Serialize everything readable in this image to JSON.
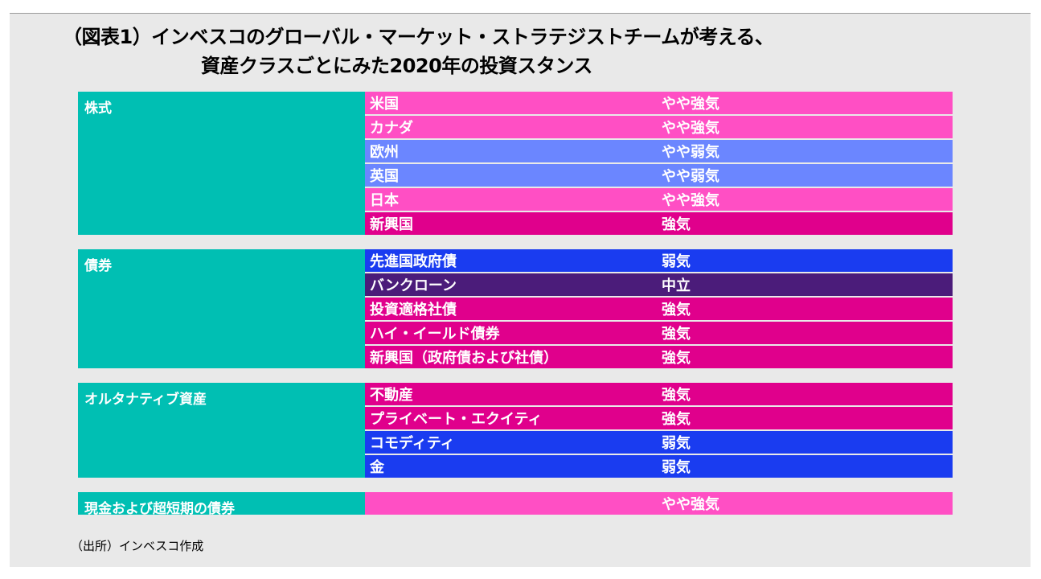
{
  "title": {
    "line1": "（図表1）インベスコのグローバル・マーケット・ストラテジストチームが考える、",
    "line2": "資産クラスごとにみた2020年の投資スタンス"
  },
  "colors": {
    "category": "#00bfb3",
    "slightly_bullish": "#ff4fc4",
    "slightly_bearish": "#6b86ff",
    "bullish": "#e0008c",
    "bearish": "#1a3cf0",
    "neutral": "#4b1c7a"
  },
  "groups": [
    {
      "category": "株式",
      "rows": [
        {
          "name": "米国",
          "stance": "やや強気",
          "color": "#ff4fc4"
        },
        {
          "name": "カナダ",
          "stance": "やや強気",
          "color": "#ff4fc4"
        },
        {
          "name": "欧州",
          "stance": "やや弱気",
          "color": "#6b86ff"
        },
        {
          "name": "英国",
          "stance": "やや弱気",
          "color": "#6b86ff"
        },
        {
          "name": "日本",
          "stance": "やや強気",
          "color": "#ff4fc4"
        },
        {
          "name": "新興国",
          "stance": "強気",
          "color": "#e0008c"
        }
      ]
    },
    {
      "category": "債券",
      "rows": [
        {
          "name": "先進国政府債",
          "stance": "弱気",
          "color": "#1a3cf0"
        },
        {
          "name": "バンクローン",
          "stance": "中立",
          "color": "#4b1c7a"
        },
        {
          "name": "投資適格社債",
          "stance": "強気",
          "color": "#e0008c"
        },
        {
          "name": "ハイ・イールド債券",
          "stance": "強気",
          "color": "#e0008c"
        },
        {
          "name": "新興国（政府債および社債）",
          "stance": "強気",
          "color": "#e0008c"
        }
      ]
    },
    {
      "category": "オルタナティブ資産",
      "rows": [
        {
          "name": "不動産",
          "stance": "強気",
          "color": "#e0008c"
        },
        {
          "name": "プライベート・エクイティ",
          "stance": "強気",
          "color": "#e0008c"
        },
        {
          "name": "コモディティ",
          "stance": "弱気",
          "color": "#1a3cf0"
        },
        {
          "name": "金",
          "stance": "弱気",
          "color": "#1a3cf0"
        }
      ]
    },
    {
      "category": "現金および超短期の債券",
      "rows": [
        {
          "name": "",
          "stance": "やや強気",
          "color": "#ff4fc4"
        }
      ]
    }
  ],
  "source": "（出所）インベスコ作成"
}
